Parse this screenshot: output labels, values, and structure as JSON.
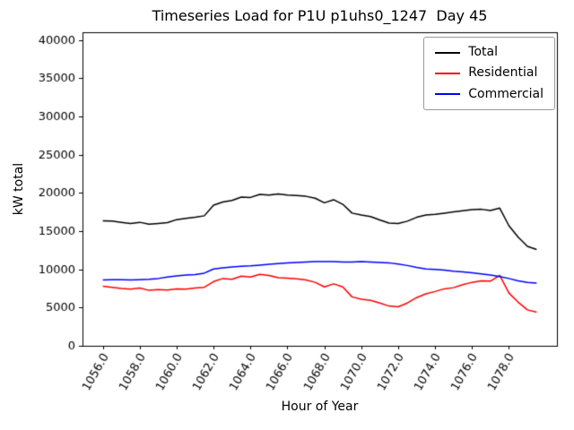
{
  "chart_data": {
    "type": "line",
    "title": "Timeseries Load for P1U p1uhs0_1247  Day 45",
    "xlabel": "Hour of Year",
    "ylabel": "kW total",
    "grid": false,
    "legend_position": "upper right",
    "background_color": "#ffffff",
    "xlim": [
      1054.9,
      1080.6
    ],
    "ylim": [
      0,
      41000
    ],
    "x_ticks": {
      "values": [
        1056,
        1058,
        1060,
        1062,
        1064,
        1066,
        1068,
        1070,
        1072,
        1074,
        1076,
        1078
      ],
      "labels": [
        "1056.0",
        "1058.0",
        "1060.0",
        "1062.0",
        "1064.0",
        "1066.0",
        "1068.0",
        "1070.0",
        "1072.0",
        "1074.0",
        "1076.0",
        "1078.0"
      ]
    },
    "y_ticks": {
      "values": [
        0,
        5000,
        10000,
        15000,
        20000,
        25000,
        30000,
        35000,
        40000
      ],
      "labels": [
        "0",
        "5000",
        "10000",
        "15000",
        "20000",
        "25000",
        "30000",
        "35000",
        "40000"
      ]
    },
    "x": [
      1056.0,
      1056.5,
      1057.0,
      1057.5,
      1058.0,
      1058.5,
      1059.0,
      1059.5,
      1060.0,
      1060.5,
      1061.0,
      1061.5,
      1062.0,
      1062.5,
      1063.0,
      1063.5,
      1064.0,
      1064.5,
      1065.0,
      1065.5,
      1066.0,
      1066.5,
      1067.0,
      1067.5,
      1068.0,
      1068.5,
      1069.0,
      1069.5,
      1070.0,
      1070.5,
      1071.0,
      1071.5,
      1072.0,
      1072.5,
      1073.0,
      1073.5,
      1074.0,
      1074.5,
      1075.0,
      1075.5,
      1076.0,
      1076.5,
      1077.0,
      1077.5,
      1078.0,
      1078.5,
      1079.0,
      1079.5
    ],
    "series": [
      {
        "name": "Total",
        "color": "#000000",
        "values": [
          16350,
          16300,
          16150,
          16000,
          16150,
          15900,
          16000,
          16100,
          16500,
          16650,
          16800,
          17000,
          18400,
          18800,
          19000,
          19450,
          19400,
          19800,
          19700,
          19850,
          19700,
          19650,
          19550,
          19300,
          18700,
          19100,
          18500,
          17350,
          17100,
          16900,
          16450,
          16050,
          16000,
          16300,
          16800,
          17100,
          17200,
          17350,
          17500,
          17650,
          17800,
          17850,
          17700,
          18000,
          15700,
          14200,
          13000,
          12600
        ]
      },
      {
        "name": "Residential",
        "color": "#ff0000",
        "values": [
          7800,
          7650,
          7500,
          7400,
          7550,
          7250,
          7350,
          7300,
          7450,
          7400,
          7550,
          7650,
          8400,
          8800,
          8700,
          9100,
          9000,
          9350,
          9200,
          8900,
          8850,
          8750,
          8600,
          8300,
          7700,
          8100,
          7700,
          6400,
          6100,
          5950,
          5600,
          5200,
          5100,
          5600,
          6300,
          6800,
          7100,
          7450,
          7600,
          8000,
          8300,
          8500,
          8450,
          9200,
          6900,
          5700,
          4700,
          4400
        ]
      },
      {
        "name": "Commercial",
        "color": "#0000ff",
        "values": [
          8600,
          8650,
          8650,
          8600,
          8650,
          8700,
          8800,
          9000,
          9150,
          9250,
          9300,
          9500,
          10050,
          10200,
          10300,
          10400,
          10450,
          10550,
          10650,
          10750,
          10850,
          10900,
          10950,
          11000,
          11000,
          11000,
          10950,
          10950,
          11000,
          10950,
          10900,
          10850,
          10700,
          10500,
          10250,
          10050,
          10000,
          9900,
          9750,
          9650,
          9550,
          9400,
          9250,
          9050,
          8800,
          8500,
          8300,
          8200
        ]
      }
    ]
  }
}
